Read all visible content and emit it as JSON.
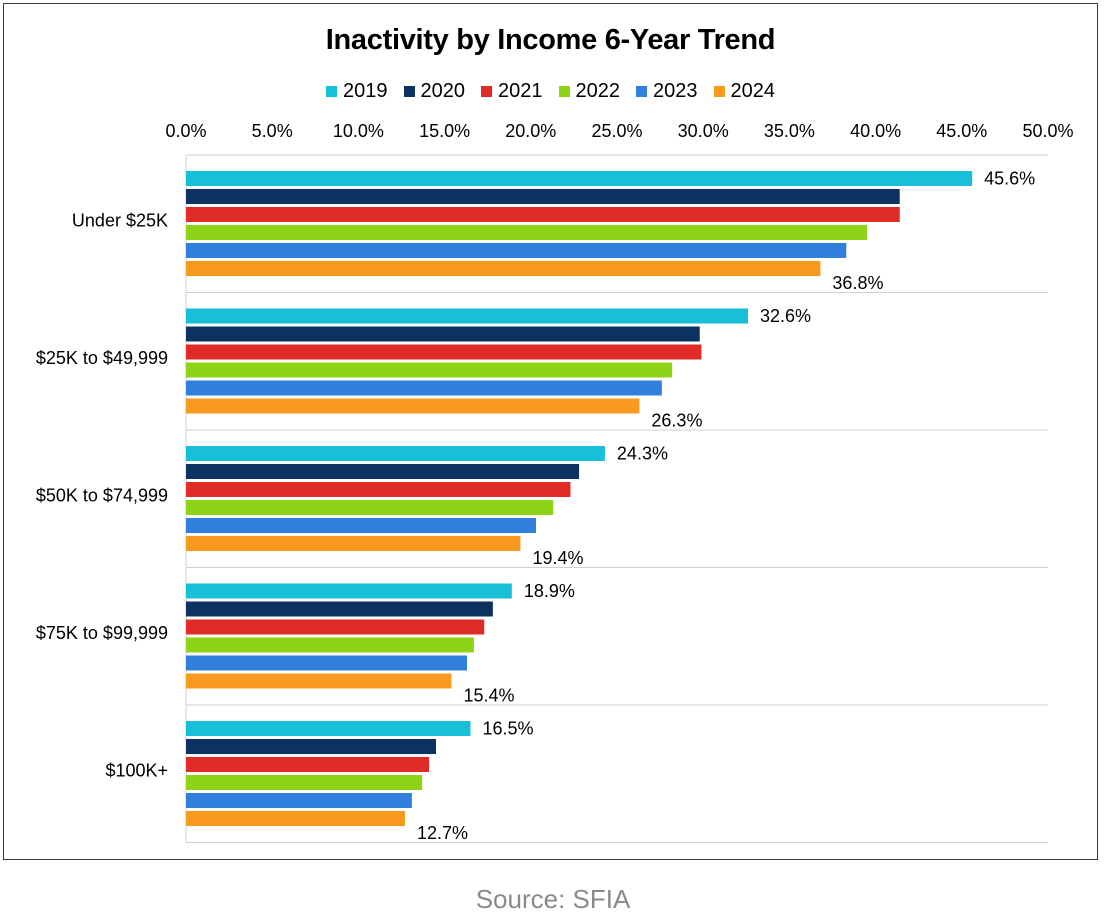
{
  "chart_data": {
    "type": "bar",
    "orientation": "horizontal",
    "title": "Inactivity by Income 6-Year Trend",
    "categories": [
      "Under $25K",
      "$25K to $49,999",
      "$50K to $74,999",
      "$75K to $99,999",
      "$100K+"
    ],
    "series": [
      {
        "name": "2019",
        "color": "#17BFD8",
        "values": [
          45.6,
          32.6,
          24.3,
          18.9,
          16.5
        ]
      },
      {
        "name": "2020",
        "color": "#0B3260",
        "values": [
          41.4,
          29.8,
          22.8,
          17.8,
          14.5
        ]
      },
      {
        "name": "2021",
        "color": "#E02B26",
        "values": [
          41.4,
          29.9,
          22.3,
          17.3,
          14.1
        ]
      },
      {
        "name": "2022",
        "color": "#8FD316",
        "values": [
          39.5,
          28.2,
          21.3,
          16.7,
          13.7
        ]
      },
      {
        "name": "2023",
        "color": "#2F7FDB",
        "values": [
          38.3,
          27.6,
          20.3,
          16.3,
          13.1
        ]
      },
      {
        "name": "2024",
        "color": "#F79A1E",
        "values": [
          36.8,
          26.3,
          19.4,
          15.4,
          12.7
        ]
      }
    ],
    "data_labels": {
      "first_series": [
        "45.6%",
        "32.6%",
        "24.3%",
        "18.9%",
        "16.5%"
      ],
      "last_series": [
        "36.8%",
        "26.3%",
        "19.4%",
        "15.4%",
        "12.7%"
      ]
    },
    "x_ticks": [
      "0.0%",
      "5.0%",
      "10.0%",
      "15.0%",
      "20.0%",
      "25.0%",
      "30.0%",
      "35.0%",
      "40.0%",
      "45.0%",
      "50.0%"
    ],
    "xlim": [
      0,
      50
    ],
    "x_axis_position": "top",
    "legend_position": "top",
    "grid": "horizontal separators between categories"
  },
  "source": "Source: SFIA"
}
